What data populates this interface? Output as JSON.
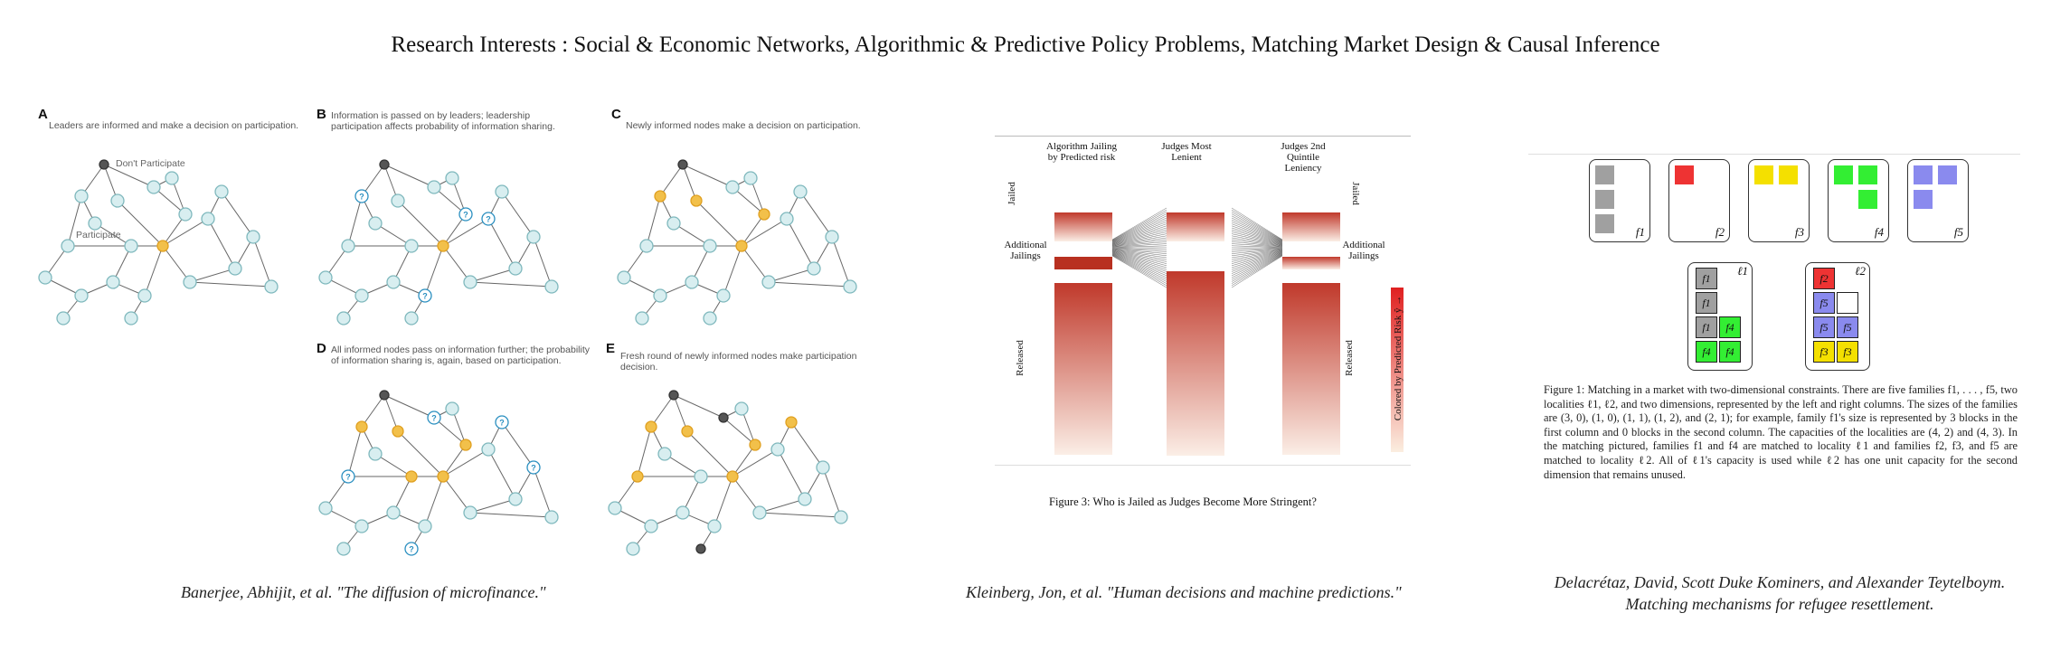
{
  "page": {
    "title": "Research Interests : Social & Economic Networks, Algorithmic & Predictive Policy Problems, Matching Market Design & Causal Inference"
  },
  "diffusion_figure": {
    "panels": [
      {
        "label": "A",
        "text": "Leaders are informed and make a decision on participation."
      },
      {
        "label": "B",
        "text": "Information is passed on by leaders; leadership participation affects probability of information sharing."
      },
      {
        "label": "C",
        "text": "Newly informed nodes make a decision on participation."
      },
      {
        "label": "D",
        "text": "All informed nodes pass on information further; the probability of information sharing is, again, based on participation."
      },
      {
        "label": "E",
        "text": "Fresh round of newly informed nodes make participation decision."
      }
    ],
    "annotations": {
      "dont_participate": "Don't Participate",
      "participate": "Participate"
    },
    "colors": {
      "node": "#d8eef0",
      "participant": "#f2c04a",
      "leader": "#555555",
      "info": "#2a8fc0"
    },
    "caption": "Banerjee, Abhijit, et al. \"The diffusion of microfinance.\""
  },
  "judges_figure": {
    "columns": [
      {
        "header": "Algorithm Jailing by Predicted risk"
      },
      {
        "header": "Judges Most Lenient"
      },
      {
        "header": "Judges 2nd Quintile Leniency"
      }
    ],
    "left_labels": {
      "jailed": "Jailed",
      "additional": "Additional Jailings",
      "released": "Released"
    },
    "right_labels": {
      "jailed": "Jailed",
      "additional": "Additional Jailings",
      "released": "Released"
    },
    "colorbar_label": "Colored by Predicted Risk ŷ →",
    "figure_caption": "Figure 3: Who is Jailed as Judges Become More Stringent?",
    "caption": "Kleinberg, Jon, et al. \"Human decisions and machine predictions.\"",
    "colors": {
      "dark": "#c0392b",
      "light": "#fbeee6"
    }
  },
  "matching_figure": {
    "families": [
      {
        "label": "f1",
        "color": "#a0a0a0"
      },
      {
        "label": "f2",
        "color": "#ee3333"
      },
      {
        "label": "f3",
        "color": "#f4e000"
      },
      {
        "label": "f4",
        "color": "#33ee33"
      },
      {
        "label": "f5",
        "color": "#8a8aee"
      }
    ],
    "localities": [
      {
        "label": "ℓ1"
      },
      {
        "label": "ℓ2"
      }
    ],
    "figure_text": "Figure 1: Matching in a market with two-dimensional constraints. There are five families f1, . . . , f5, two localities ℓ1, ℓ2, and two dimensions, represented by the left and right columns. The sizes of the families are (3, 0), (1, 0), (1, 1), (1, 2), and (2, 1); for example, family f1's size is represented by 3 blocks in the first column and 0 blocks in the second column. The capacities of the localities are (4, 2) and (4, 3). In the matching pictured, families f1 and f4 are matched to locality ℓ1 and families f2, f3, and f5 are matched to locality ℓ2. All of ℓ1's capacity is used while ℓ2 has one unit capacity for the second dimension that remains unused.",
    "caption_line1": "Delacrétaz, David, Scott Duke Kominers, and Alexander Teytelboym.",
    "caption_line2": "Matching mechanisms for refugee resettlement."
  }
}
